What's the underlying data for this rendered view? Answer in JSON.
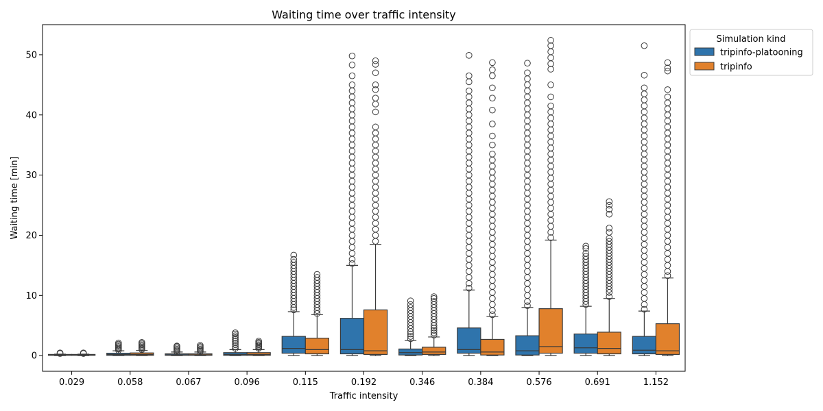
{
  "chart_data": {
    "type": "box",
    "title": "Waiting time over traffic intensity",
    "xlabel": "Traffic intensity",
    "ylabel": "Waiting time [min]",
    "ylim": [
      -2.6,
      55
    ],
    "yticks": [
      0,
      10,
      20,
      30,
      40,
      50
    ],
    "legend": {
      "title": "Simulation kind",
      "position": "outside-top-right"
    },
    "categories": [
      "0.029",
      "0.058",
      "0.067",
      "0.096",
      "0.115",
      "0.192",
      "0.346",
      "0.384",
      "0.576",
      "0.691",
      "1.152"
    ],
    "series": [
      {
        "name": "tripinfo-platooning",
        "color": "#2f74ac",
        "boxes": [
          {
            "whislo": 0,
            "q1": 0.05,
            "med": 0.1,
            "q3": 0.2,
            "whishi": 0.25,
            "fliers": [
              0.35,
              0.45
            ]
          },
          {
            "whislo": 0,
            "q1": 0.05,
            "med": 0.2,
            "q3": 0.4,
            "whishi": 0.8,
            "fliers": [
              0.9,
              1.1,
              1.3,
              1.5,
              1.7,
              1.9,
              2.1
            ]
          },
          {
            "whislo": 0,
            "q1": 0.05,
            "med": 0.15,
            "q3": 0.3,
            "whishi": 0.6,
            "fliers": [
              0.7,
              0.9,
              1.1,
              1.3,
              1.5,
              1.6
            ]
          },
          {
            "whislo": 0,
            "q1": 0.05,
            "med": 0.2,
            "q3": 0.5,
            "whishi": 1.0,
            "fliers": [
              1.2,
              1.5,
              1.8,
              2.1,
              2.4,
              2.7,
              3.0,
              3.3,
              3.6,
              3.8
            ]
          },
          {
            "whislo": 0,
            "q1": 0.4,
            "med": 1.2,
            "q3": 3.2,
            "whishi": 7.3,
            "fliers": [
              7.6,
              8.0,
              8.5,
              9.0,
              9.5,
              10.0,
              10.5,
              11.0,
              11.5,
              12.0,
              12.5,
              13.0,
              13.5,
              14.0,
              14.5,
              15.0,
              15.5,
              16.0,
              16.7
            ]
          },
          {
            "whislo": 0,
            "q1": 0.3,
            "med": 1.0,
            "q3": 6.2,
            "whishi": 15.0,
            "fliers": [
              15.3,
              16,
              17,
              18,
              19,
              20,
              21,
              22,
              23,
              24,
              25,
              26,
              27,
              28,
              29,
              30,
              31,
              32,
              33,
              34,
              35,
              36,
              37,
              38,
              39,
              40,
              41,
              42,
              43,
              44,
              45,
              46.5,
              48.3,
              49.8
            ]
          },
          {
            "whislo": 0,
            "q1": 0.1,
            "med": 0.5,
            "q3": 1.1,
            "whishi": 2.5,
            "fliers": [
              2.8,
              3.2,
              3.6,
              4.0,
              4.5,
              5.0,
              5.5,
              6.0,
              6.5,
              7.0,
              7.5,
              8.0,
              8.5,
              9.1
            ]
          },
          {
            "whislo": 0,
            "q1": 0.4,
            "med": 1.0,
            "q3": 4.6,
            "whishi": 10.9,
            "fliers": [
              11.2,
              12,
              13,
              14,
              15,
              16,
              17,
              18,
              19,
              20,
              21,
              22,
              23,
              24,
              25,
              26,
              27,
              28,
              29,
              30,
              31,
              32,
              33,
              34,
              35,
              36,
              37,
              38,
              39,
              40,
              41,
              42,
              43,
              44,
              45.5,
              46.5,
              49.9
            ]
          },
          {
            "whislo": 0,
            "q1": 0.1,
            "med": 0.8,
            "q3": 3.3,
            "whishi": 8.0,
            "fliers": [
              8.3,
              9,
              10,
              11,
              12,
              13,
              14,
              15,
              16,
              17,
              18,
              19,
              20,
              21,
              22,
              23,
              24,
              25,
              26,
              27,
              28,
              29,
              30,
              31,
              32,
              33,
              34,
              35,
              36,
              37,
              38,
              39,
              40,
              41,
              42,
              43,
              44,
              45,
              46,
              47,
              48.6
            ]
          },
          {
            "whislo": 0,
            "q1": 0.4,
            "med": 1.3,
            "q3": 3.6,
            "whishi": 8.2,
            "fliers": [
              8.5,
              9,
              9.5,
              10,
              10.5,
              11,
              11.5,
              12,
              12.5,
              13,
              13.5,
              14,
              14.5,
              15,
              15.5,
              16,
              16.5,
              17,
              17.8,
              18.2
            ]
          },
          {
            "whislo": 0,
            "q1": 0.3,
            "med": 0.9,
            "q3": 3.2,
            "whishi": 7.4,
            "fliers": [
              7.7,
              8.5,
              9.5,
              10.5,
              11.5,
              12.5,
              13.5,
              14.5,
              15.5,
              16.5,
              17.5,
              18.5,
              19.5,
              20.5,
              21.5,
              22.5,
              23.5,
              24.5,
              25.5,
              26.5,
              27.5,
              28.5,
              29.5,
              30.5,
              31.5,
              32.5,
              33.5,
              34.5,
              35.5,
              36.5,
              37.5,
              38.5,
              39.5,
              40.5,
              41.5,
              42.5,
              43.5,
              44.5,
              46.6,
              51.5
            ]
          }
        ]
      },
      {
        "name": "tripinfo",
        "color": "#e1812c",
        "boxes": [
          {
            "whislo": 0,
            "q1": 0.05,
            "med": 0.1,
            "q3": 0.2,
            "whishi": 0.25,
            "fliers": [
              0.35,
              0.45
            ]
          },
          {
            "whislo": 0,
            "q1": 0.05,
            "med": 0.2,
            "q3": 0.45,
            "whishi": 0.85,
            "fliers": [
              1.0,
              1.2,
              1.4,
              1.6,
              1.8,
              2.0,
              2.2
            ]
          },
          {
            "whislo": 0,
            "q1": 0.05,
            "med": 0.15,
            "q3": 0.3,
            "whishi": 0.6,
            "fliers": [
              0.7,
              0.9,
              1.1,
              1.3,
              1.5,
              1.7
            ]
          },
          {
            "whislo": 0,
            "q1": 0.05,
            "med": 0.2,
            "q3": 0.5,
            "whishi": 1.0,
            "fliers": [
              1.2,
              1.4,
              1.6,
              1.8,
              2.0,
              2.2,
              2.4
            ]
          },
          {
            "whislo": 0,
            "q1": 0.3,
            "med": 1.0,
            "q3": 2.9,
            "whishi": 6.8,
            "fliers": [
              7.0,
              7.5,
              8.0,
              8.5,
              9.0,
              9.5,
              10.0,
              10.5,
              11.0,
              11.5,
              12.0,
              12.5,
              13.0,
              13.5
            ]
          },
          {
            "whislo": 0,
            "q1": 0.2,
            "med": 0.8,
            "q3": 7.6,
            "whishi": 18.5,
            "fliers": [
              19,
              20,
              21,
              22,
              23,
              24,
              25,
              26,
              27,
              28,
              29,
              30,
              31,
              32,
              33,
              34,
              35,
              36,
              37,
              38,
              40.5,
              41.8,
              42.8,
              44.2,
              45,
              47,
              48.4,
              49
            ]
          },
          {
            "whislo": 0,
            "q1": 0.2,
            "med": 0.6,
            "q3": 1.4,
            "whishi": 3.1,
            "fliers": [
              3.4,
              3.8,
              4.2,
              4.6,
              5.0,
              5.5,
              6.0,
              6.5,
              7.0,
              7.5,
              8.0,
              8.5,
              9.0,
              9.5,
              9.8
            ]
          },
          {
            "whislo": 0,
            "q1": 0.1,
            "med": 0.6,
            "q3": 2.7,
            "whishi": 6.5,
            "fliers": [
              6.8,
              7.5,
              8.5,
              9.5,
              10.5,
              11.5,
              12.5,
              13.5,
              14.5,
              15.5,
              16.5,
              17.5,
              18.5,
              19.5,
              20.5,
              21.5,
              22.5,
              23.5,
              24.5,
              25.5,
              26.5,
              27.5,
              28.5,
              29.5,
              30.5,
              31.5,
              32.5,
              33.5,
              35,
              36.5,
              38.5,
              40.8,
              42.8,
              44.5,
              46.5,
              47.5,
              48.7
            ]
          },
          {
            "whislo": 0,
            "q1": 0.4,
            "med": 1.5,
            "q3": 7.8,
            "whishi": 19.2,
            "fliers": [
              19.6,
              20.5,
              21.5,
              22.5,
              23.5,
              24.5,
              25.5,
              26.5,
              27.5,
              28.5,
              29.5,
              30.5,
              31.5,
              32.5,
              33.5,
              34.5,
              35.5,
              36.5,
              37.5,
              38.5,
              39.5,
              40.5,
              41.5,
              43,
              45,
              47.6,
              48.5,
              49.5,
              50.5,
              51.5,
              52.4
            ]
          },
          {
            "whislo": 0,
            "q1": 0.3,
            "med": 1.2,
            "q3": 3.9,
            "whishi": 9.5,
            "fliers": [
              9.8,
              10.5,
              11,
              11.5,
              12,
              12.5,
              13,
              13.5,
              14,
              14.5,
              15,
              15.5,
              16,
              16.5,
              17,
              17.5,
              18,
              18.5,
              19,
              19.5,
              20.5,
              21.2,
              23.5,
              24.3,
              25,
              25.6
            ]
          },
          {
            "whislo": 0,
            "q1": 0.2,
            "med": 0.8,
            "q3": 5.3,
            "whishi": 12.9,
            "fliers": [
              13.3,
              14,
              15,
              16,
              17,
              18,
              19,
              20,
              21,
              22,
              23,
              24,
              25,
              26,
              27,
              28,
              29,
              30,
              31,
              32,
              33,
              34,
              35,
              36,
              37,
              38,
              39,
              40,
              41,
              42,
              43,
              44.2,
              47.3,
              47.8,
              48.7
            ]
          }
        ]
      }
    ]
  }
}
